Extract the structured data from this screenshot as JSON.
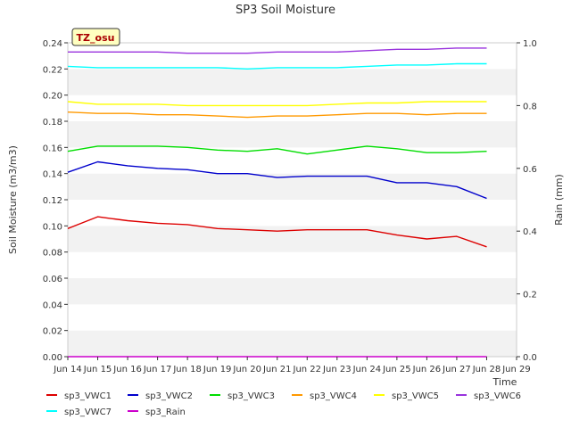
{
  "chart_data": {
    "type": "line",
    "title": "SP3 Soil Moisture",
    "badge": "TZ_osu",
    "xlabel": "Time",
    "ylabel": "Soil Moisture (m3/m3)",
    "y2label": "Rain (mm)",
    "xlim": [
      "2024-06-14",
      "2024-06-29"
    ],
    "ylim": [
      0.0,
      0.24
    ],
    "y2lim": [
      0.0,
      1.0
    ],
    "x_ticks": [
      "Jun 14",
      "Jun 15",
      "Jun 16",
      "Jun 17",
      "Jun 18",
      "Jun 19",
      "Jun 20",
      "Jun 21",
      "Jun 22",
      "Jun 23",
      "Jun 24",
      "Jun 25",
      "Jun 26",
      "Jun 27",
      "Jun 28",
      "Jun 29"
    ],
    "y_ticks": [
      "0.00",
      "0.02",
      "0.04",
      "0.06",
      "0.08",
      "0.10",
      "0.12",
      "0.14",
      "0.16",
      "0.18",
      "0.20",
      "0.22",
      "0.24"
    ],
    "y2_ticks": [
      "0.0",
      "0.2",
      "0.4",
      "0.6",
      "0.8",
      "1.0"
    ],
    "grid": "horizontal alternating bands",
    "legend_position": "bottom",
    "x_days": [
      "2024-06-14",
      "2024-06-15",
      "2024-06-16",
      "2024-06-17",
      "2024-06-18",
      "2024-06-19",
      "2024-06-20",
      "2024-06-21",
      "2024-06-22",
      "2024-06-23",
      "2024-06-24",
      "2024-06-25",
      "2024-06-26",
      "2024-06-27",
      "2024-06-28"
    ],
    "series": [
      {
        "name": "sp3_VWC1",
        "color": "#dd0000",
        "axis": "left",
        "values": [
          0.098,
          0.107,
          0.104,
          0.102,
          0.101,
          0.098,
          0.097,
          0.096,
          0.097,
          0.097,
          0.097,
          0.093,
          0.09,
          0.092,
          0.084
        ]
      },
      {
        "name": "sp3_VWC2",
        "color": "#0000cc",
        "axis": "left",
        "values": [
          0.141,
          0.149,
          0.146,
          0.144,
          0.143,
          0.14,
          0.14,
          0.137,
          0.138,
          0.138,
          0.138,
          0.133,
          0.133,
          0.13,
          0.121
        ]
      },
      {
        "name": "sp3_VWC3",
        "color": "#00dd00",
        "axis": "left",
        "values": [
          0.157,
          0.161,
          0.161,
          0.161,
          0.16,
          0.158,
          0.157,
          0.159,
          0.155,
          0.158,
          0.161,
          0.159,
          0.156,
          0.156,
          0.157
        ]
      },
      {
        "name": "sp3_VWC4",
        "color": "#ff9900",
        "axis": "left",
        "values": [
          0.187,
          0.186,
          0.186,
          0.185,
          0.185,
          0.184,
          0.183,
          0.184,
          0.184,
          0.185,
          0.186,
          0.186,
          0.185,
          0.186,
          0.186
        ]
      },
      {
        "name": "sp3_VWC5",
        "color": "#ffff00",
        "axis": "left",
        "values": [
          0.195,
          0.193,
          0.193,
          0.193,
          0.192,
          0.192,
          0.192,
          0.192,
          0.192,
          0.193,
          0.194,
          0.194,
          0.195,
          0.195,
          0.195
        ]
      },
      {
        "name": "sp3_VWC6",
        "color": "#9933dd",
        "axis": "left",
        "values": [
          0.233,
          0.233,
          0.233,
          0.233,
          0.232,
          0.232,
          0.232,
          0.233,
          0.233,
          0.233,
          0.234,
          0.235,
          0.235,
          0.236,
          0.236
        ]
      },
      {
        "name": "sp3_VWC7",
        "color": "#00ffff",
        "axis": "left",
        "values": [
          0.222,
          0.221,
          0.221,
          0.221,
          0.221,
          0.221,
          0.22,
          0.221,
          0.221,
          0.221,
          0.222,
          0.223,
          0.223,
          0.224,
          0.224
        ]
      },
      {
        "name": "sp3_Rain",
        "color": "#cc00cc",
        "axis": "right",
        "values": [
          0.0,
          0.0,
          0.0,
          0.0,
          0.0,
          0.0,
          0.0,
          0.0,
          0.0,
          0.0,
          0.0,
          0.0,
          0.0,
          0.0,
          0.0
        ]
      }
    ]
  }
}
